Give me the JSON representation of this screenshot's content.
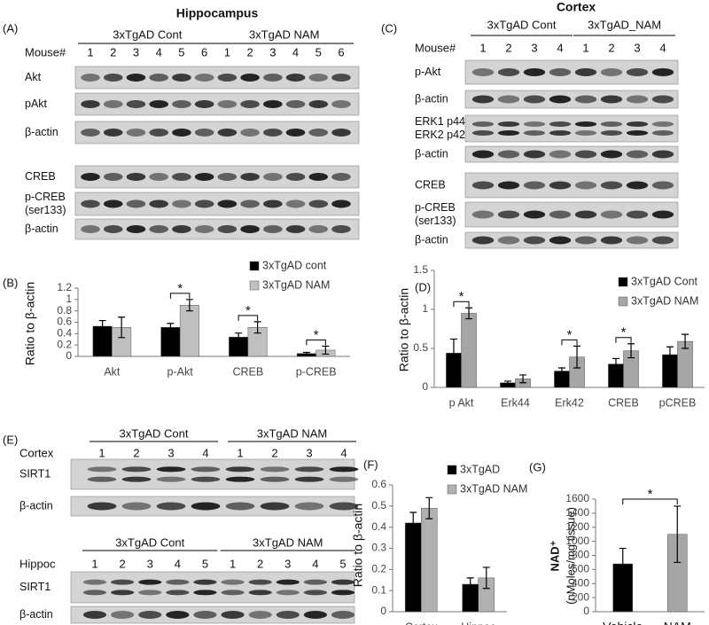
{
  "blots": [
    {
      "label": "(A)",
      "title": "Hippocampus",
      "sections": [
        {
          "lane_caption": "Mouse#",
          "groups": [
            "3xTgAD Cont",
            "3xTgAD NAM"
          ],
          "lanes": [
            1,
            2,
            3,
            4,
            5,
            6,
            1,
            2,
            3,
            4,
            5,
            6
          ],
          "rows": [
            [
              "Akt"
            ],
            [
              "pAkt"
            ],
            [
              "β-actin"
            ],
            [
              "CREB"
            ],
            [
              "p-CREB",
              "(ser133)"
            ],
            [
              "β-actin"
            ]
          ]
        }
      ]
    },
    {
      "label": "(C)",
      "title": "Cortex",
      "sections": [
        {
          "lane_caption": "Mouse#",
          "groups": [
            "3xTgAD Cont",
            "3xTgAD_NAM"
          ],
          "lanes": [
            1,
            2,
            3,
            4,
            1,
            2,
            3,
            4
          ],
          "rows": [
            [
              "p-Akt"
            ],
            [
              "β-actin"
            ],
            [
              "ERK1 p44",
              "ERK2 p42"
            ],
            [
              "β-actin"
            ],
            [
              "CREB"
            ],
            [
              "p-CREB",
              "(ser133)"
            ],
            [
              "β-actin"
            ]
          ]
        }
      ]
    },
    {
      "label": "(E)",
      "sections": [
        {
          "lane_caption": "Cortex",
          "groups": [
            "3xTgAD Cont",
            "3xTgAD NAM"
          ],
          "lanes": [
            1,
            2,
            3,
            4,
            1,
            2,
            3,
            4
          ],
          "rows": [
            [
              "SIRT1"
            ],
            [
              "β-actin"
            ]
          ]
        },
        {
          "lane_caption": "Hippoc",
          "groups": [
            "3xTgAD Cont",
            "3xTgAD NAM"
          ],
          "lanes": [
            1,
            2,
            3,
            4,
            5,
            1,
            2,
            3,
            4,
            5
          ],
          "rows": [
            [
              "SIRT1"
            ],
            [
              "β-actin"
            ]
          ]
        }
      ]
    }
  ],
  "chart_data": [
    {
      "type": "bar",
      "label": "(B)",
      "ylabel": "Ratio to β-actin",
      "categories": [
        "Akt",
        "p-Akt",
        "CREB",
        "p-CREB"
      ],
      "series": [
        {
          "name": "3xTgAD cont",
          "color": "#000000",
          "values": [
            0.53,
            0.51,
            0.34,
            0.05
          ],
          "errors": [
            0.1,
            0.07,
            0.07,
            0.02
          ]
        },
        {
          "name": "3xTgAD NAM",
          "color": "#c0c0c0",
          "values": [
            0.51,
            0.9,
            0.51,
            0.11
          ],
          "errors": [
            0.18,
            0.1,
            0.1,
            0.07
          ]
        }
      ],
      "ylim": [
        0,
        1.2
      ],
      "yticks": [
        0,
        0.2,
        0.4,
        0.6,
        0.8,
        1,
        1.2
      ],
      "annotations": [
        "*",
        "*",
        "*"
      ]
    },
    {
      "type": "bar",
      "label": "(D)",
      "ylabel": "Ratio to β-actin",
      "categories": [
        "p  Akt",
        "Erk44",
        "Erk42",
        "CREB",
        "pCREB"
      ],
      "series": [
        {
          "name": "3xTgAD Cont",
          "color": "#000000",
          "values": [
            0.44,
            0.06,
            0.21,
            0.3,
            0.42
          ],
          "errors": [
            0.18,
            0.02,
            0.04,
            0.07,
            0.1
          ]
        },
        {
          "name": "3xTgAD NAM",
          "color": "#a6a6a6",
          "values": [
            0.95,
            0.11,
            0.39,
            0.47,
            0.59
          ],
          "errors": [
            0.07,
            0.05,
            0.14,
            0.09,
            0.09
          ]
        }
      ],
      "ylim": [
        0,
        1.5
      ],
      "yticks": [
        0,
        0.5,
        1,
        1.5
      ],
      "annotations": [
        "*",
        "*",
        "*"
      ]
    },
    {
      "type": "bar",
      "label": "(F)",
      "ylabel": "Ratio to β-actin",
      "categories": [
        "Cortex",
        "Hippoc"
      ],
      "series": [
        {
          "name": "3xTgAD",
          "color": "#000000",
          "values": [
            0.42,
            0.13
          ],
          "errors": [
            0.05,
            0.03
          ]
        },
        {
          "name": "3xTgAD NAM",
          "color": "#b0b0b0",
          "values": [
            0.49,
            0.16
          ],
          "errors": [
            0.05,
            0.05
          ]
        }
      ],
      "ylim": [
        0,
        0.6
      ],
      "yticks": [
        0,
        0.1,
        0.2,
        0.3,
        0.4,
        0.5,
        0.6
      ],
      "annotations": []
    },
    {
      "type": "bar",
      "label": "(G)",
      "ylabel": "NAD⁺",
      "ylabel_sub": "(nMoles/mg tissue)",
      "categories": [
        "Vehicle",
        "NAM"
      ],
      "series": [
        {
          "colors": [
            "#000000",
            "#a6a6a6"
          ],
          "values": [
            680,
            1100
          ],
          "errors": [
            220,
            400
          ]
        }
      ],
      "ylim": [
        0,
        1600
      ],
      "yticks": [
        0,
        200,
        400,
        600,
        800,
        1000,
        1200,
        1400,
        1600
      ],
      "annotations": [
        "*"
      ]
    }
  ]
}
